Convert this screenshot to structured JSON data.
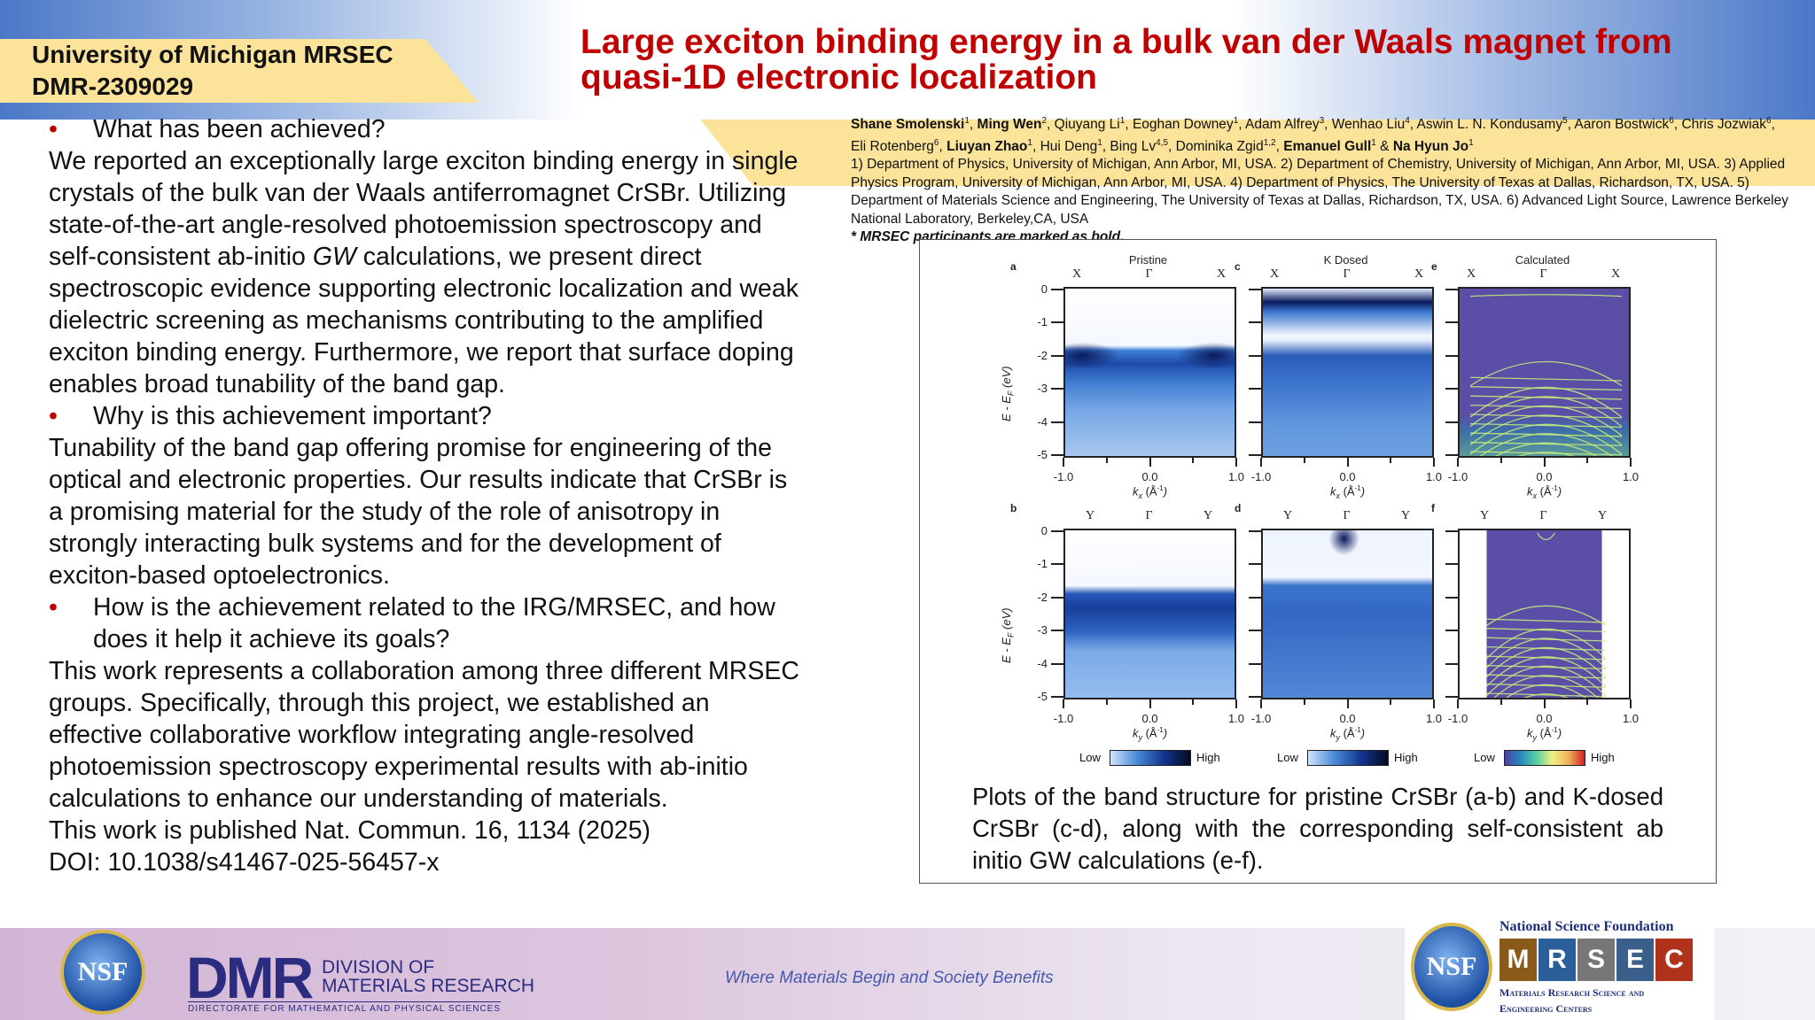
{
  "header": {
    "institution": "University of Michigan MRSEC",
    "award": "DMR-2309029",
    "title": "Large exciton binding energy in a bulk van der Waals magnet from quasi-1D electronic localization"
  },
  "body": {
    "q1": "What has been achieved?",
    "p1a": "We reported an exceptionally large exciton binding energy in single crystals of the bulk van der Waals antiferromagnet CrSBr. Utilizing state-of-the-art angle-resolved photoemission spectroscopy and self-consistent ab-initio ",
    "p1gw": "GW",
    "p1b": " calculations, we present direct spectroscopic evidence supporting electronic localization and weak dielectric screening as mechanisms contributing to the amplified exciton binding energy. Furthermore, we report that surface doping enables broad tunability of the band gap.",
    "q2": "Why is this achievement important?",
    "p2": "Tunability of the band gap offering promise for engineering of the optical and electronic properties. Our results indicate that CrSBr is a promising material for the study of the role of anisotropy in strongly interacting bulk systems and for the development of exciton-based optoelectronics.",
    "q3": "How is the achievement related to the IRG/MRSEC, and how does it help it achieve its goals?",
    "p3": "This work represents a collaboration among three different MRSEC groups. Specifically, through this project, we established an effective collaborative workflow integrating angle-resolved photoemission spectroscopy experimental results with ab-initio calculations to enhance our understanding of materials.",
    "pub": "This work is published Nat. Commun. 16, 1134 (2025)",
    "doi": "DOI: 10.1038/s41467-025-56457-x"
  },
  "authors": {
    "line": [
      {
        "n": "Shane Smolenski",
        "b": true,
        "s": "1"
      },
      {
        "n": "Ming Wen",
        "b": true,
        "s": "2"
      },
      {
        "n": "Qiuyang Li",
        "b": false,
        "s": "1"
      },
      {
        "n": "Eoghan Downey",
        "b": false,
        "s": "1"
      },
      {
        "n": "Adam Alfrey",
        "b": false,
        "s": "3"
      },
      {
        "n": "Wenhao Liu",
        "b": false,
        "s": "4"
      },
      {
        "n": "Aswin L. N. Kondusamy",
        "b": false,
        "s": "5"
      },
      {
        "n": "Aaron Bostwick",
        "b": false,
        "s": "6"
      },
      {
        "n": "Chris Jozwiak",
        "b": false,
        "s": "6"
      },
      {
        "n": "Eli Rotenberg",
        "b": false,
        "s": "6"
      },
      {
        "n": "Liuyan Zhao",
        "b": true,
        "s": "1"
      },
      {
        "n": "Hui Deng",
        "b": false,
        "s": "1"
      },
      {
        "n": "Bing Lv",
        "b": false,
        "s": "4,5"
      },
      {
        "n": "Dominika Zgid",
        "b": false,
        "s": "1,2"
      },
      {
        "n": "Emanuel Gull",
        "b": true,
        "s": "1"
      },
      {
        "n": "Na Hyun Jo",
        "b": true,
        "s": "1"
      }
    ],
    "affiliations": "1) Department of Physics, University of Michigan, Ann Arbor, MI, USA. 2) Department of Chemistry, University of Michigan, Ann Arbor, MI, USA. 3) Applied Physics Program, University of Michigan, Ann Arbor, MI, USA. 4) Department of Physics, The University of Texas at Dallas, Richardson, TX, USA. 5) Department of Materials Science and Engineering, The University of Texas at Dallas, Richardson, TX, USA. 6) Advanced Light Source, Lawrence Berkeley National Laboratory, Berkeley,CA, USA",
    "note": "* MRSEC participants are marked as bold."
  },
  "figure": {
    "ylabel": "E - E",
    "ysub": "F",
    "yunit": " (eV)",
    "yticks": [
      "0",
      "-1",
      "-2",
      "-3",
      "-4",
      "-5"
    ],
    "xticks": [
      "-1.0",
      "0.0",
      "1.0"
    ],
    "low": "Low",
    "high": "High",
    "titles": [
      "Pristine",
      "K Dosed",
      "Calculated"
    ],
    "panels": [
      {
        "letter": "a",
        "top": [
          "X",
          "Γ",
          "X"
        ],
        "k": "x",
        "kind": "pristine-x"
      },
      {
        "letter": "c",
        "top": [
          "X",
          "Γ",
          "X"
        ],
        "k": "x",
        "kind": "dosed-x"
      },
      {
        "letter": "e",
        "top": [
          "X",
          "Γ",
          "X"
        ],
        "k": "x",
        "kind": "calc-x"
      },
      {
        "letter": "b",
        "top": [
          "Y",
          "Γ",
          "Y"
        ],
        "k": "y",
        "kind": "pristine-y"
      },
      {
        "letter": "d",
        "top": [
          "Y",
          "Γ",
          "Y"
        ],
        "k": "y",
        "kind": "dosed-y"
      },
      {
        "letter": "f",
        "top": [
          "Y",
          "Γ",
          "Y"
        ],
        "k": "y",
        "kind": "calc-y"
      }
    ],
    "xunit": " (Å",
    "xexp": "-1",
    "colors": {
      "arpes_dark": "#0a1a5c",
      "arpes_mid": "#2f6cc8",
      "calc_bg": "#5a4ea6",
      "calc_line": "#c8f07a"
    }
  },
  "caption": "Plots of the band structure for pristine CrSBr (a-b) and K-dosed CrSBr (c-d), along with the corresponding self-consistent ab initio GW calculations (e-f).",
  "footer": {
    "nsf": "NSF",
    "dmr": "DMR",
    "dmr_line1": "DIVISION OF",
    "dmr_line2": "MATERIALS RESEARCH",
    "dmr_sub": "DIRECTORATE FOR MATHEMATICAL AND PHYSICAL SCIENCES",
    "tagline": "Where Materials Begin and Society Benefits",
    "mrsec_title": "National Science Foundation",
    "mrsec_letters": [
      "M",
      "R",
      "S",
      "E",
      "C"
    ],
    "mrsec_sub1": "Materials Research Science and",
    "mrsec_sub2": "Engineering Centers"
  }
}
